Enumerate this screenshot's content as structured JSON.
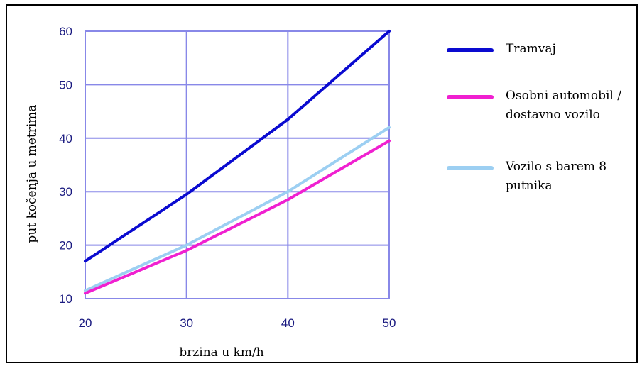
{
  "chart_data": {
    "type": "line",
    "title": "",
    "xlabel": "brzina u km/h",
    "ylabel": "put kočenja u metrima",
    "x": [
      20,
      30,
      40,
      50
    ],
    "xlim": [
      20,
      50
    ],
    "ylim": [
      10,
      60
    ],
    "xticks": [
      "20",
      "30",
      "40",
      "50"
    ],
    "yticks": [
      "10",
      "20",
      "30",
      "40",
      "50",
      "60"
    ],
    "grid": true,
    "legend_position": "right",
    "series": [
      {
        "name": "Tramvaj",
        "values": [
          17,
          29.5,
          43.5,
          60
        ],
        "color": "#0a0ad0"
      },
      {
        "name": "Osobni automobil / dostavno vozilo",
        "values": [
          11,
          19,
          28.5,
          39.5
        ],
        "color": "#f020d0"
      },
      {
        "name": "Vozilo s barem 8 putnika",
        "values": [
          11.5,
          20,
          30,
          42
        ],
        "color": "#9ccff2"
      }
    ],
    "colors": {
      "grid": "#8888e8",
      "tick_text": "#1a1a80",
      "frame": "#000000"
    }
  }
}
